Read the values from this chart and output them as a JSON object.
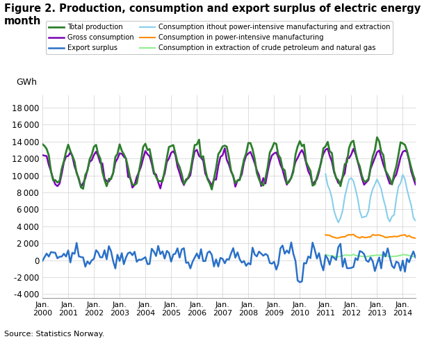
{
  "title": "Figure 2. Production, consumption and export surplus of electric energy per\nmonth",
  "ylabel": "GWh",
  "source": "Source: Statistics Norway.",
  "ylim": [
    -4500,
    19500
  ],
  "yticks": [
    -4000,
    -2000,
    0,
    2000,
    4000,
    6000,
    8000,
    10000,
    12000,
    14000,
    16000,
    18000
  ],
  "start_year": 2000,
  "n_months": 181,
  "legend": [
    {
      "label": "Total production",
      "color": "#2d7f2d",
      "lw": 2.0
    },
    {
      "label": "Gross consumption",
      "color": "#7b00b4",
      "lw": 1.8
    },
    {
      "label": "Export surplus",
      "color": "#2970c8",
      "lw": 1.8
    },
    {
      "label": "Consumption ithout power-intensive manufacturing and extraction",
      "color": "#87ceeb",
      "lw": 1.5
    },
    {
      "label": "Consumption in power-intensive manufacturing",
      "color": "#ff8c00",
      "lw": 1.5
    },
    {
      "label": "Consumption in extraction of crude petroleum and natural gas",
      "color": "#90ee90",
      "lw": 1.5
    }
  ],
  "background_color": "#ffffff",
  "grid_color": "#d0d0d0"
}
